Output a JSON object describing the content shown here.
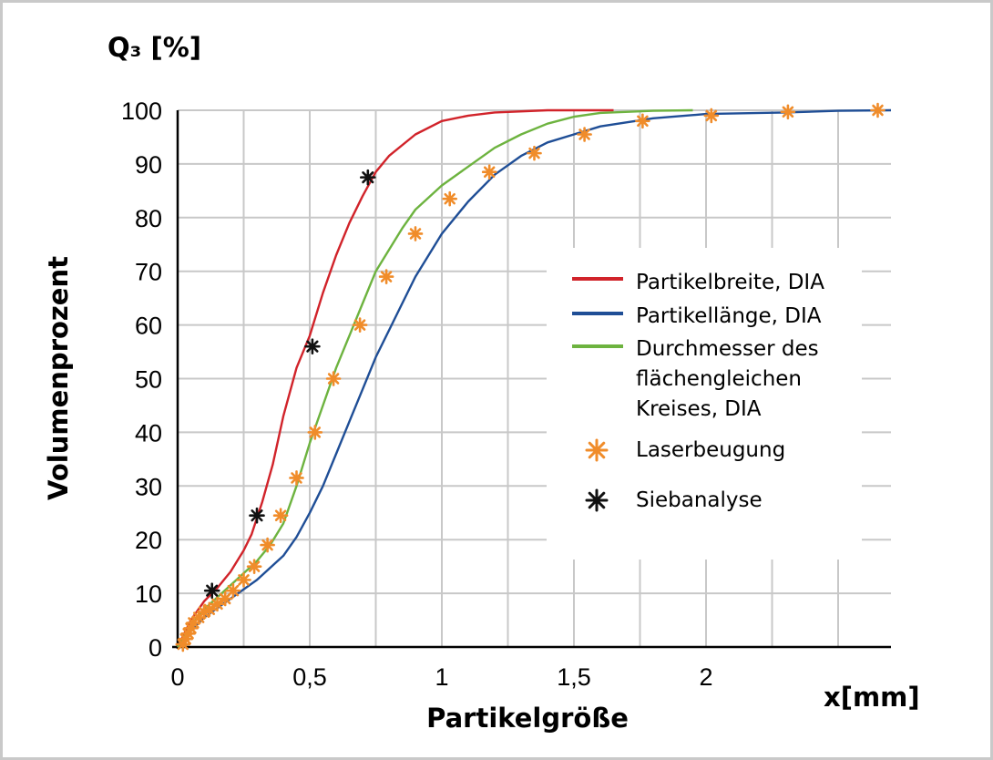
{
  "chart_data": {
    "type": "line",
    "y_unit_label": "Q₃ [%]",
    "xlabel": "Partikelgröße",
    "x_unit_label": "x[mm]",
    "ylabel": "Volumenprozent",
    "xlim": [
      0,
      2.7
    ],
    "ylim": [
      0,
      100
    ],
    "grid": true,
    "legend_position": "right",
    "x_tick_values": [
      0,
      0.5,
      1,
      1.5,
      2
    ],
    "x_tick_labels": [
      "0",
      "0,5",
      "1",
      "1,5",
      "2"
    ],
    "y_tick_values": [
      0,
      10,
      20,
      30,
      40,
      50,
      60,
      70,
      80,
      90,
      100
    ],
    "y_tick_labels": [
      "0",
      "10",
      "20",
      "30",
      "40",
      "50",
      "60",
      "70",
      "80",
      "90",
      "100"
    ],
    "series": [
      {
        "name": "Partikelbreite, DIA",
        "kind": "line",
        "color": "#d1232a",
        "points": [
          [
            0,
            0
          ],
          [
            0.02,
            2
          ],
          [
            0.05,
            5
          ],
          [
            0.1,
            8.5
          ],
          [
            0.15,
            11
          ],
          [
            0.2,
            14
          ],
          [
            0.25,
            18
          ],
          [
            0.28,
            21
          ],
          [
            0.32,
            27
          ],
          [
            0.36,
            34
          ],
          [
            0.4,
            43
          ],
          [
            0.45,
            52
          ],
          [
            0.5,
            58
          ],
          [
            0.55,
            66
          ],
          [
            0.6,
            73
          ],
          [
            0.65,
            79
          ],
          [
            0.7,
            84
          ],
          [
            0.75,
            88.5
          ],
          [
            0.8,
            91.5
          ],
          [
            0.9,
            95.5
          ],
          [
            1.0,
            98
          ],
          [
            1.1,
            99
          ],
          [
            1.2,
            99.6
          ],
          [
            1.4,
            100
          ],
          [
            1.65,
            100
          ]
        ]
      },
      {
        "name": "Partikellänge, DIA",
        "kind": "line",
        "color": "#1f4e96",
        "points": [
          [
            0,
            0
          ],
          [
            0.05,
            3
          ],
          [
            0.1,
            5.5
          ],
          [
            0.2,
            9
          ],
          [
            0.3,
            12.5
          ],
          [
            0.4,
            17
          ],
          [
            0.45,
            20.5
          ],
          [
            0.5,
            25
          ],
          [
            0.55,
            30
          ],
          [
            0.6,
            36
          ],
          [
            0.65,
            42
          ],
          [
            0.7,
            48
          ],
          [
            0.75,
            54
          ],
          [
            0.8,
            59
          ],
          [
            0.85,
            64
          ],
          [
            0.9,
            69
          ],
          [
            1.0,
            77
          ],
          [
            1.1,
            83
          ],
          [
            1.2,
            88
          ],
          [
            1.3,
            91.5
          ],
          [
            1.4,
            94
          ],
          [
            1.5,
            95.5
          ],
          [
            1.6,
            97
          ],
          [
            1.8,
            98.5
          ],
          [
            2.0,
            99.3
          ],
          [
            2.3,
            99.6
          ],
          [
            2.5,
            99.9
          ],
          [
            2.7,
            100
          ]
        ]
      },
      {
        "name": "Durchmesser des flächengleichen Kreises, DIA",
        "kind": "line",
        "color": "#6db33f",
        "points": [
          [
            0,
            0
          ],
          [
            0.02,
            1.5
          ],
          [
            0.05,
            4
          ],
          [
            0.1,
            7
          ],
          [
            0.2,
            11.5
          ],
          [
            0.3,
            16
          ],
          [
            0.35,
            19
          ],
          [
            0.4,
            23
          ],
          [
            0.45,
            30
          ],
          [
            0.5,
            38
          ],
          [
            0.55,
            45
          ],
          [
            0.6,
            52
          ],
          [
            0.65,
            58
          ],
          [
            0.7,
            64
          ],
          [
            0.75,
            70
          ],
          [
            0.8,
            74
          ],
          [
            0.85,
            78
          ],
          [
            0.9,
            81.5
          ],
          [
            1.0,
            86
          ],
          [
            1.1,
            89.5
          ],
          [
            1.2,
            93
          ],
          [
            1.3,
            95.5
          ],
          [
            1.4,
            97.5
          ],
          [
            1.5,
            98.8
          ],
          [
            1.6,
            99.5
          ],
          [
            1.8,
            99.9
          ],
          [
            1.95,
            100
          ]
        ]
      },
      {
        "name": "Laserbeugung",
        "kind": "marker",
        "color": "#f08c2a",
        "points": [
          [
            0.02,
            0.5
          ],
          [
            0.03,
            1.5
          ],
          [
            0.04,
            2.5
          ],
          [
            0.05,
            3.5
          ],
          [
            0.06,
            4.5
          ],
          [
            0.08,
            5.5
          ],
          [
            0.1,
            6.5
          ],
          [
            0.12,
            7
          ],
          [
            0.15,
            8
          ],
          [
            0.18,
            9
          ],
          [
            0.21,
            10.5
          ],
          [
            0.25,
            12.5
          ],
          [
            0.29,
            15
          ],
          [
            0.34,
            19
          ],
          [
            0.39,
            24.5
          ],
          [
            0.45,
            31.5
          ],
          [
            0.52,
            40
          ],
          [
            0.59,
            50
          ],
          [
            0.69,
            60
          ],
          [
            0.79,
            69
          ],
          [
            0.9,
            77
          ],
          [
            1.03,
            83.5
          ],
          [
            1.18,
            88.5
          ],
          [
            1.35,
            92
          ],
          [
            1.54,
            95.5
          ],
          [
            1.76,
            98
          ],
          [
            2.02,
            99
          ],
          [
            2.31,
            99.7
          ],
          [
            2.65,
            100
          ]
        ]
      },
      {
        "name": "Siebanalyse",
        "kind": "marker",
        "color": "#111111",
        "points": [
          [
            0.13,
            10.5
          ],
          [
            0.3,
            24.5
          ],
          [
            0.51,
            56
          ],
          [
            0.72,
            87.5
          ]
        ]
      }
    ]
  }
}
